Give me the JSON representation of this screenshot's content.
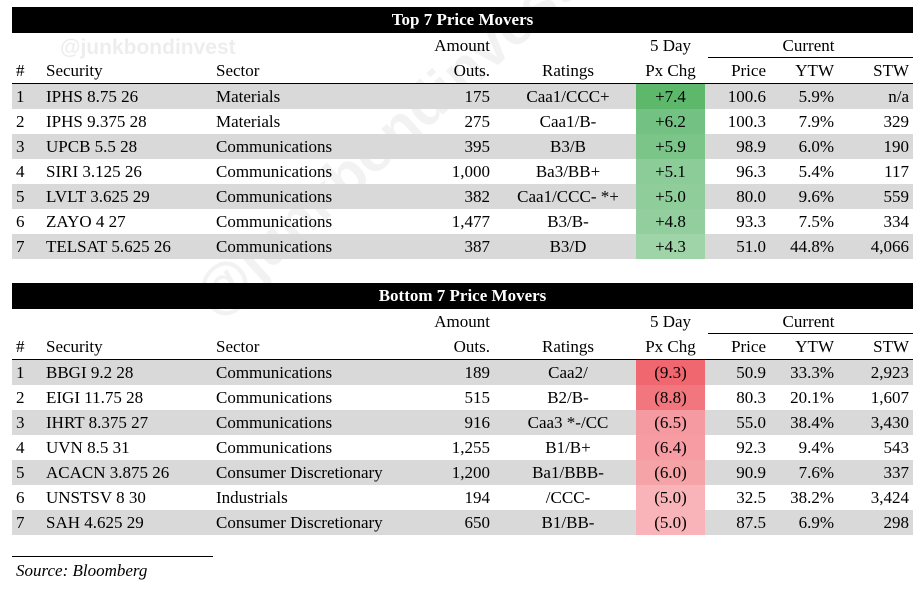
{
  "top": {
    "title": "Top 7 Price Movers",
    "header_row1": {
      "amount": "Amount",
      "chg": "5 Day",
      "current": "Current"
    },
    "header_row2": {
      "num": "#",
      "security": "Security",
      "sector": "Sector",
      "amount": "Outs.",
      "ratings": "Ratings",
      "chg": "Px Chg",
      "price": "Price",
      "ytw": "YTW",
      "stw": "STW"
    },
    "rows": [
      {
        "num": "1",
        "security": "IPHS 8.75 26",
        "sector": "Materials",
        "amount": "175",
        "ratings": "Caa1/CCC+",
        "chg": "+7.4",
        "price": "100.6",
        "ytw": "5.9%",
        "stw": "n/a",
        "chg_color": "#5db86c"
      },
      {
        "num": "2",
        "security": "IPHS 9.375 28",
        "sector": "Materials",
        "amount": "275",
        "ratings": "Caa1/B-",
        "chg": "+6.2",
        "price": "100.3",
        "ytw": "7.9%",
        "stw": "329",
        "chg_color": "#74c283"
      },
      {
        "num": "3",
        "security": "UPCB 5.5 28",
        "sector": "Communications",
        "amount": "395",
        "ratings": "B3/B",
        "chg": "+5.9",
        "price": "98.9",
        "ytw": "6.0%",
        "stw": "190",
        "chg_color": "#7bc589"
      },
      {
        "num": "4",
        "security": "SIRI 3.125 26",
        "sector": "Communications",
        "amount": "1,000",
        "ratings": "Ba3/BB+",
        "chg": "+5.1",
        "price": "96.3",
        "ytw": "5.4%",
        "stw": "117",
        "chg_color": "#8ccc98"
      },
      {
        "num": "5",
        "security": "LVLT 3.625 29",
        "sector": "Communications",
        "amount": "382",
        "ratings": "Caa1/CCC- *+",
        "chg": "+5.0",
        "price": "80.0",
        "ytw": "9.6%",
        "stw": "559",
        "chg_color": "#8fcd9b"
      },
      {
        "num": "6",
        "security": "ZAYO 4 27",
        "sector": "Communications",
        "amount": "1,477",
        "ratings": "B3/B-",
        "chg": "+4.8",
        "price": "93.3",
        "ytw": "7.5%",
        "stw": "334",
        "chg_color": "#93cf9e"
      },
      {
        "num": "7",
        "security": "TELSAT 5.625 26",
        "sector": "Communications",
        "amount": "387",
        "ratings": "B3/D",
        "chg": "+4.3",
        "price": "51.0",
        "ytw": "44.8%",
        "stw": "4,066",
        "chg_color": "#9fd4a9"
      }
    ]
  },
  "bottom": {
    "title": "Bottom 7 Price Movers",
    "header_row1": {
      "amount": "Amount",
      "chg": "5 Day",
      "current": "Current"
    },
    "header_row2": {
      "num": "#",
      "security": "Security",
      "sector": "Sector",
      "amount": "Outs.",
      "ratings": "Ratings",
      "chg": "Px Chg",
      "price": "Price",
      "ytw": "YTW",
      "stw": "STW"
    },
    "rows": [
      {
        "num": "1",
        "security": "BBGI 9.2 28",
        "sector": "Communications",
        "amount": "189",
        "ratings": "Caa2/",
        "chg": "(9.3)",
        "price": "50.9",
        "ytw": "33.3%",
        "stw": "2,923",
        "chg_color": "#f0676f"
      },
      {
        "num": "2",
        "security": "EIGI 11.75 28",
        "sector": "Communications",
        "amount": "515",
        "ratings": "B2/B-",
        "chg": "(8.8)",
        "price": "80.3",
        "ytw": "20.1%",
        "stw": "1,607",
        "chg_color": "#f2767e"
      },
      {
        "num": "3",
        "security": "IHRT 8.375 27",
        "sector": "Communications",
        "amount": "916",
        "ratings": "Caa3 *-/CC",
        "chg": "(6.5)",
        "price": "55.0",
        "ytw": "38.4%",
        "stw": "3,430",
        "chg_color": "#f59aa0"
      },
      {
        "num": "4",
        "security": "UVN 8.5 31",
        "sector": "Communications",
        "amount": "1,255",
        "ratings": "B1/B+",
        "chg": "(6.4)",
        "price": "92.3",
        "ytw": "9.4%",
        "stw": "543",
        "chg_color": "#f69ca2"
      },
      {
        "num": "5",
        "security": "ACACN 3.875 26",
        "sector": "Consumer Discretionary",
        "amount": "1,200",
        "ratings": "Ba1/BBB-",
        "chg": "(6.0)",
        "price": "90.9",
        "ytw": "7.6%",
        "stw": "337",
        "chg_color": "#f6a3a8"
      },
      {
        "num": "6",
        "security": "UNSTSV 8 30",
        "sector": "Industrials",
        "amount": "194",
        "ratings": "/CCC-",
        "chg": "(5.0)",
        "price": "32.5",
        "ytw": "38.2%",
        "stw": "3,424",
        "chg_color": "#f8b4b8"
      },
      {
        "num": "7",
        "security": "SAH 4.625 29",
        "sector": "Consumer Discretionary",
        "amount": "650",
        "ratings": "B1/BB-",
        "chg": "(5.0)",
        "price": "87.5",
        "ytw": "6.9%",
        "stw": "298",
        "chg_color": "#f8b4b8"
      }
    ]
  },
  "watermark": "@junkbondinvest",
  "source": "Source: Bloomberg"
}
